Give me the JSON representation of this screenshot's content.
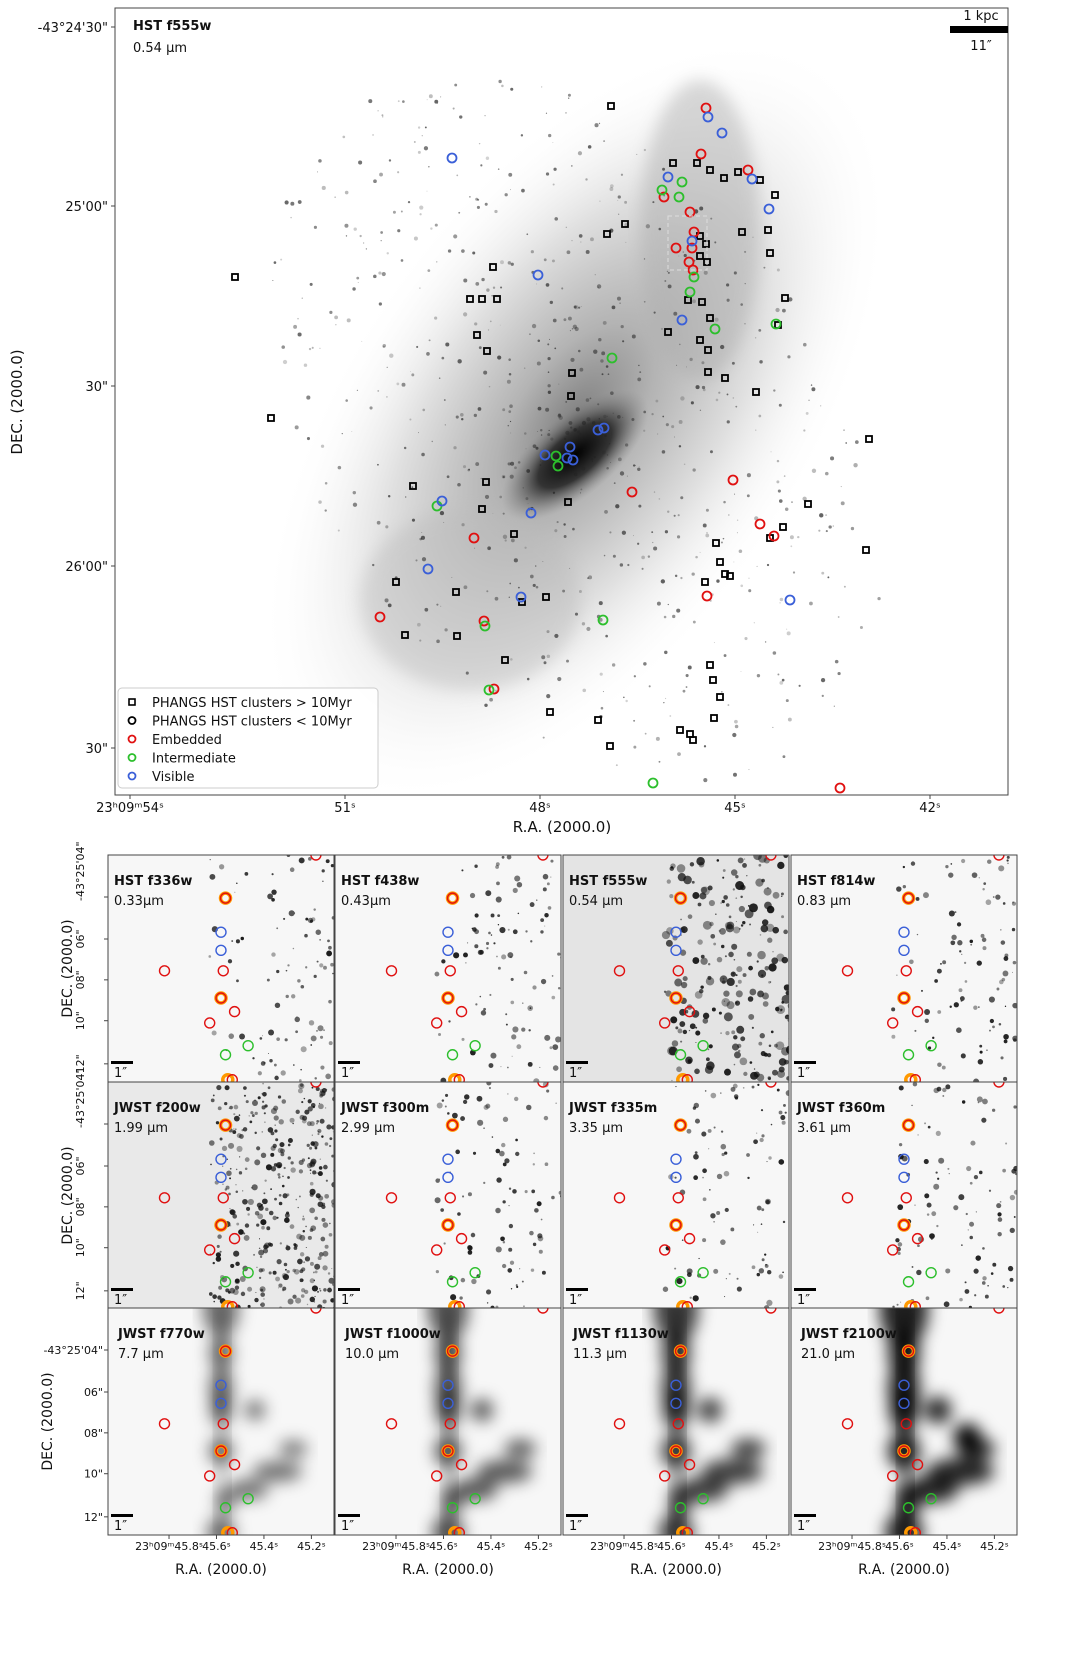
{
  "main_panel": {
    "filter": "HST f555w",
    "wavelength": "0.54 μm",
    "scale_bar": {
      "length": "1 kpc",
      "angle": "11″"
    },
    "y_label": "DEC. (2000.0)",
    "x_label": "R.A. (2000.0)",
    "y_ticks": [
      "-43°24'30\"",
      "25'00\"",
      "30\"",
      "26'00\"",
      "30\""
    ],
    "x_ticks": [
      "23ʰ09ᵐ54ˢ",
      "51ˢ",
      "48ˢ",
      "45ˢ",
      "42ˢ"
    ],
    "legend": [
      "PHANGS HST clusters > 10Myr",
      "PHANGS HST clusters < 10Myr",
      "Embedded",
      "Intermediate",
      "Visible"
    ]
  },
  "cutouts": {
    "y_label": "DEC. (2000.0)",
    "x_label": "R.A. (2000.0)",
    "y_ticks": [
      "-43°25'04\"",
      "06\"",
      "08\"",
      "10\"",
      "12\""
    ],
    "x_ticks": [
      "23ʰ09ᵐ45.8ˢ",
      "45.6ˢ",
      "45.4ˢ",
      "45.2ˢ"
    ],
    "scale_bar": "1″",
    "panels": [
      {
        "filter": "HST f336w",
        "wavelength": "0.33μm"
      },
      {
        "filter": "HST f438w",
        "wavelength": "0.43μm"
      },
      {
        "filter": "HST f555w",
        "wavelength": "0.54 μm"
      },
      {
        "filter": "HST f814w",
        "wavelength": "0.83 μm"
      },
      {
        "filter": "JWST f200w",
        "wavelength": "1.99 μm"
      },
      {
        "filter": "JWST f300m",
        "wavelength": "2.99 μm"
      },
      {
        "filter": "JWST f335m",
        "wavelength": "3.35 μm"
      },
      {
        "filter": "JWST f360m",
        "wavelength": "3.61 μm"
      },
      {
        "filter": "JWST f770w",
        "wavelength": "7.7 μm"
      },
      {
        "filter": "JWST f1000w",
        "wavelength": "10.0 μm"
      },
      {
        "filter": "JWST f1130w",
        "wavelength": "11.3 μm"
      },
      {
        "filter": "JWST f2100w",
        "wavelength": "21.0 μm"
      }
    ]
  }
}
